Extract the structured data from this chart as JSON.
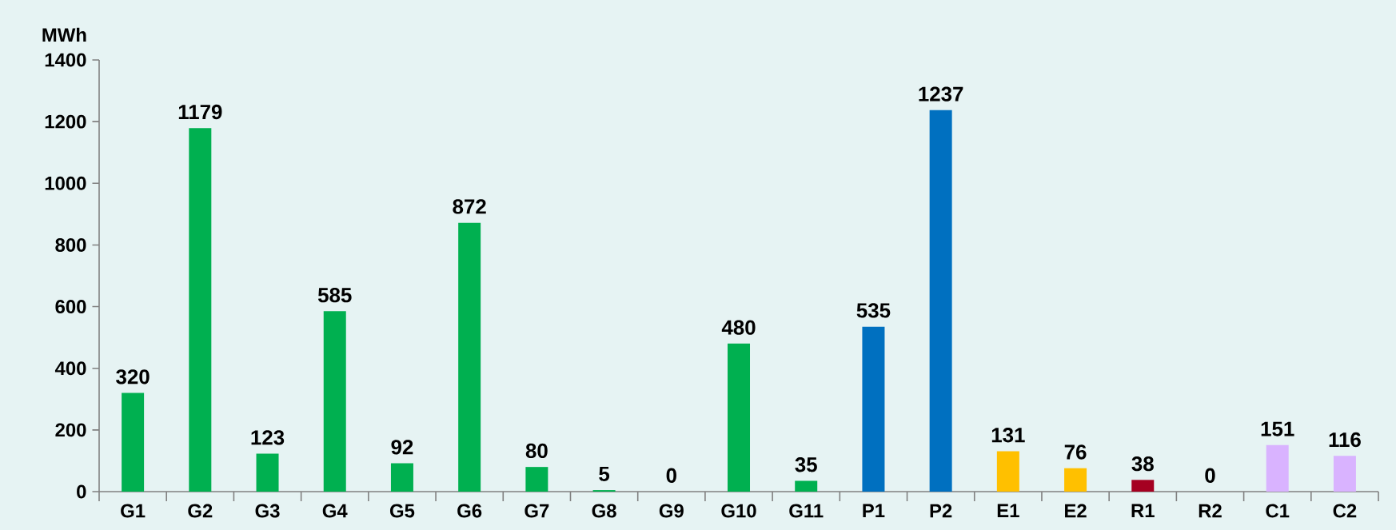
{
  "chart_data": {
    "type": "bar",
    "ylabel": "MWh",
    "categories": [
      "G1",
      "G2",
      "G3",
      "G4",
      "G5",
      "G6",
      "G7",
      "G8",
      "G9",
      "G10",
      "G11",
      "P1",
      "P2",
      "E1",
      "E2",
      "R1",
      "R2",
      "C1",
      "C2"
    ],
    "values": [
      320,
      1179,
      123,
      585,
      92,
      872,
      80,
      5,
      0,
      480,
      35,
      535,
      1237,
      131,
      76,
      38,
      0,
      151,
      116
    ],
    "colors": [
      "#00b050",
      "#00b050",
      "#00b050",
      "#00b050",
      "#00b050",
      "#00b050",
      "#00b050",
      "#00b050",
      "#00b050",
      "#00b050",
      "#00b050",
      "#0070c0",
      "#0070c0",
      "#ffc000",
      "#ffc000",
      "#a50021",
      "#a50021",
      "#d9b3ff",
      "#d9b3ff"
    ],
    "ylim": [
      0,
      1400
    ],
    "yticks": [
      0,
      200,
      400,
      600,
      800,
      1000,
      1200,
      1400
    ],
    "data_labels": true
  }
}
